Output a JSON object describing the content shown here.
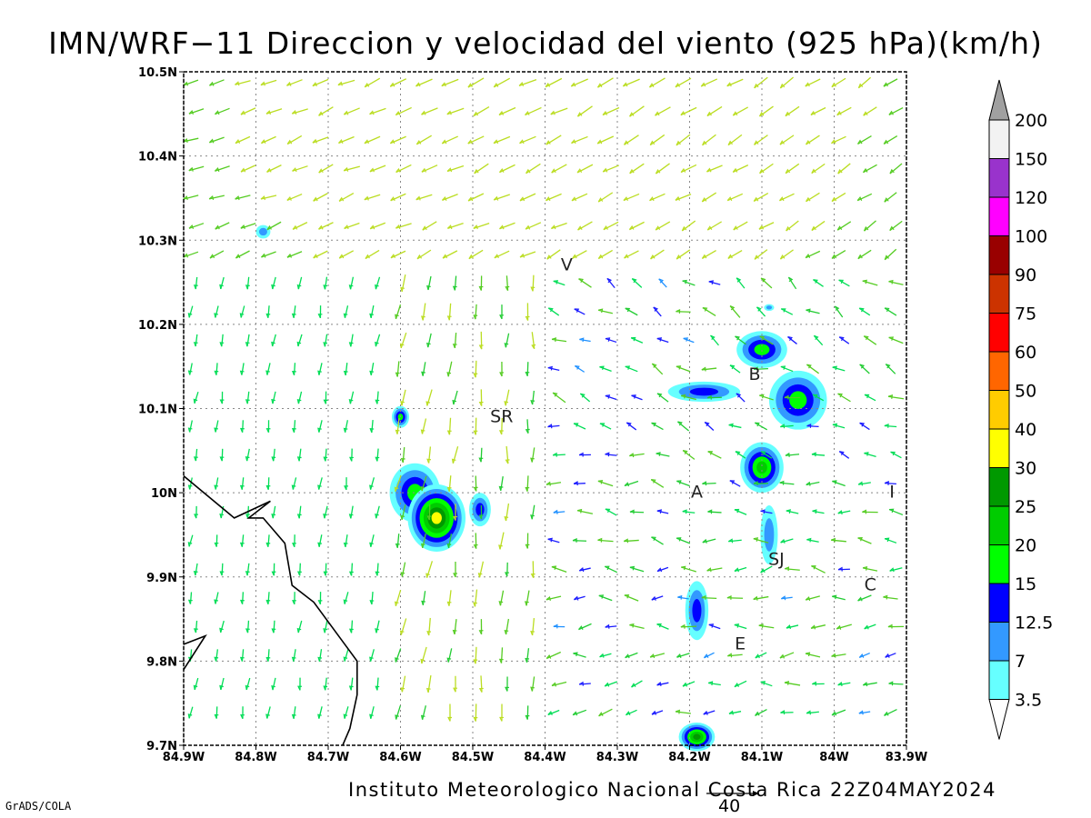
{
  "title": "IMN/WRF−11 Direccion y velocidad del viento (925 hPa)(km/h)",
  "footer": "Instituto Meteorologico Nacional Costa Rica  22Z04MAY2024",
  "software_label": "GrADS/COLA",
  "reference_vector": {
    "label": "40",
    "value": 40
  },
  "map": {
    "lon_range": [
      -84.9,
      -83.9
    ],
    "lat_range": [
      9.7,
      10.5
    ],
    "grid_lines": "dotted",
    "x_ticks": [
      {
        "value": -84.9,
        "label": "84.9W"
      },
      {
        "value": -84.8,
        "label": "84.8W"
      },
      {
        "value": -84.7,
        "label": "84.7W"
      },
      {
        "value": -84.6,
        "label": "84.6W"
      },
      {
        "value": -84.5,
        "label": "84.5W"
      },
      {
        "value": -84.4,
        "label": "84.4W"
      },
      {
        "value": -84.3,
        "label": "84.3W"
      },
      {
        "value": -84.2,
        "label": "84.2W"
      },
      {
        "value": -84.1,
        "label": "84.1W"
      },
      {
        "value": -84.0,
        "label": "84W"
      },
      {
        "value": -83.9,
        "label": "83.9W"
      }
    ],
    "y_ticks": [
      {
        "value": 9.7,
        "label": "9.7N"
      },
      {
        "value": 9.8,
        "label": "9.8N"
      },
      {
        "value": 9.9,
        "label": "9.9N"
      },
      {
        "value": 10.0,
        "label": "10N"
      },
      {
        "value": 10.1,
        "label": "10.1N"
      },
      {
        "value": 10.2,
        "label": "10.2N"
      },
      {
        "value": 10.3,
        "label": "10.3N"
      },
      {
        "value": 10.4,
        "label": "10.4N"
      },
      {
        "value": 10.5,
        "label": "10.5N"
      }
    ],
    "places": [
      {
        "label": "V",
        "lon": -84.37,
        "lat": 10.27
      },
      {
        "label": "SR",
        "lon": -84.46,
        "lat": 10.09
      },
      {
        "label": "B",
        "lon": -84.11,
        "lat": 10.14
      },
      {
        "label": "A",
        "lon": -84.19,
        "lat": 10.0
      },
      {
        "label": "I",
        "lon": -83.92,
        "lat": 10.0
      },
      {
        "label": "SJ",
        "lon": -84.08,
        "lat": 9.92
      },
      {
        "label": "C",
        "lon": -83.95,
        "lat": 9.89
      },
      {
        "label": "E",
        "lon": -84.13,
        "lat": 9.82
      }
    ],
    "coastline": [
      [
        -84.9,
        10.02
      ],
      [
        -84.83,
        9.97
      ],
      [
        -84.78,
        9.99
      ],
      [
        -84.81,
        9.97
      ],
      [
        -84.79,
        9.97
      ],
      [
        -84.76,
        9.94
      ],
      [
        -84.75,
        9.89
      ],
      [
        -84.72,
        9.87
      ],
      [
        -84.66,
        9.8
      ],
      [
        -84.66,
        9.76
      ],
      [
        -84.67,
        9.72
      ],
      [
        -84.68,
        9.7
      ]
    ],
    "coastline_peninsula": [
      [
        -84.9,
        9.79
      ],
      [
        -84.87,
        9.83
      ],
      [
        -84.9,
        9.82
      ]
    ]
  },
  "colorbar": {
    "levels": [
      "3.5",
      "7",
      "12.5",
      "15",
      "20",
      "25",
      "30",
      "40",
      "50",
      "60",
      "75",
      "90",
      "100",
      "120",
      "150",
      "200"
    ],
    "colors": [
      "#66ffff",
      "#3399ff",
      "#0000ff",
      "#00ff00",
      "#00cc00",
      "#009900",
      "#ffff00",
      "#ffcc00",
      "#ff6600",
      "#ff0000",
      "#cc3300",
      "#990000",
      "#ff00ff",
      "#9933cc",
      "#f2f2f2",
      "#a0a0a0"
    ]
  },
  "shaded_cells": [
    {
      "lon": -84.1,
      "lat": 10.17,
      "rx": 0.035,
      "ry": 0.022,
      "level": 3
    },
    {
      "lon": -84.05,
      "lat": 10.11,
      "rx": 0.04,
      "ry": 0.035,
      "level": 3
    },
    {
      "lon": -84.1,
      "lat": 10.03,
      "rx": 0.03,
      "ry": 0.03,
      "level": 4
    },
    {
      "lon": -84.18,
      "lat": 10.12,
      "rx": 0.05,
      "ry": 0.012,
      "level": 2
    },
    {
      "lon": -84.09,
      "lat": 9.95,
      "rx": 0.012,
      "ry": 0.035,
      "level": 1
    },
    {
      "lon": -84.6,
      "lat": 10.09,
      "rx": 0.012,
      "ry": 0.013,
      "level": 3
    },
    {
      "lon": -84.58,
      "lat": 10.0,
      "rx": 0.035,
      "ry": 0.035,
      "level": 3
    },
    {
      "lon": -84.55,
      "lat": 9.97,
      "rx": 0.04,
      "ry": 0.04,
      "level": 6
    },
    {
      "lon": -84.49,
      "lat": 9.98,
      "rx": 0.015,
      "ry": 0.02,
      "level": 2
    },
    {
      "lon": -84.19,
      "lat": 9.86,
      "rx": 0.016,
      "ry": 0.035,
      "level": 2
    },
    {
      "lon": -84.19,
      "lat": 9.71,
      "rx": 0.025,
      "ry": 0.017,
      "level": 5
    },
    {
      "lon": -84.79,
      "lat": 10.31,
      "rx": 0.01,
      "ry": 0.008,
      "level": 1
    },
    {
      "lon": -84.09,
      "lat": 10.22,
      "rx": 0.007,
      "ry": 0.004,
      "level": 1
    }
  ]
}
